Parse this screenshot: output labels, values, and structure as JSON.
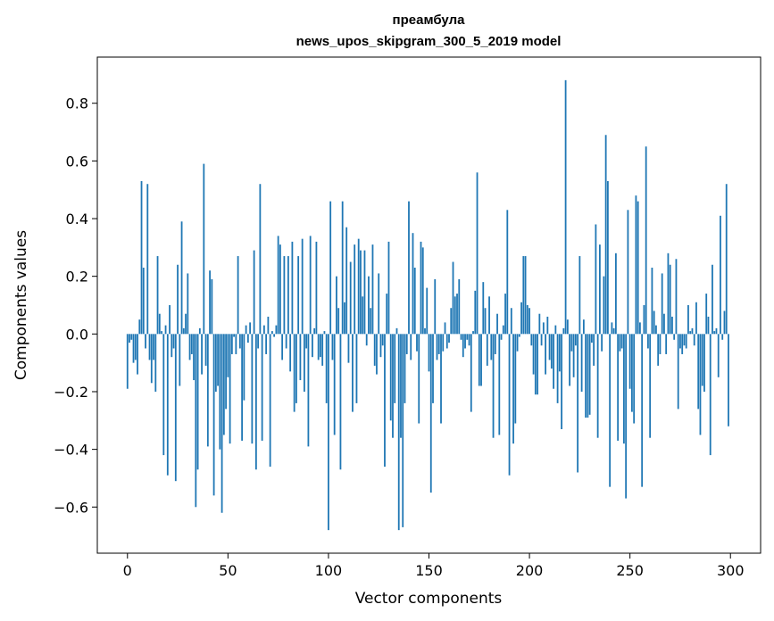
{
  "chart_data": {
    "type": "bar",
    "title": "преамбула",
    "subtitle": "news_upos_skipgram_300_5_2019 model",
    "xlabel": "Vector components",
    "ylabel": "Components values",
    "xlim": [
      -15,
      315
    ],
    "ylim": [
      -0.76,
      0.96
    ],
    "xticks": [
      0,
      50,
      100,
      150,
      200,
      250,
      300
    ],
    "xtick_labels": [
      "0",
      "50",
      "100",
      "150",
      "200",
      "250",
      "300"
    ],
    "yticks": [
      -0.6,
      -0.4,
      -0.2,
      0.0,
      0.2,
      0.4,
      0.6,
      0.8
    ],
    "ytick_labels": [
      "−0.6",
      "−0.4",
      "−0.2",
      "0.0",
      "0.2",
      "0.4",
      "0.6",
      "0.8"
    ],
    "grid": false,
    "bar_color": "#1f77b4",
    "values": [
      -0.19,
      -0.03,
      -0.02,
      -0.1,
      -0.09,
      -0.14,
      0.05,
      0.53,
      0.23,
      -0.05,
      0.52,
      -0.09,
      -0.17,
      -0.09,
      -0.2,
      0.27,
      0.07,
      0.01,
      -0.42,
      0.03,
      -0.49,
      0.1,
      -0.08,
      -0.05,
      -0.51,
      0.24,
      -0.18,
      0.39,
      0.02,
      0.07,
      0.21,
      -0.09,
      -0.07,
      -0.16,
      -0.6,
      -0.47,
      0.02,
      -0.14,
      0.59,
      -0.11,
      -0.39,
      0.22,
      0.19,
      -0.56,
      -0.2,
      -0.18,
      -0.4,
      -0.62,
      -0.35,
      -0.26,
      -0.15,
      -0.38,
      -0.07,
      -0.01,
      -0.07,
      0.27,
      -0.05,
      -0.37,
      -0.23,
      0.03,
      -0.03,
      0.04,
      -0.38,
      0.29,
      -0.47,
      -0.05,
      0.52,
      -0.37,
      0.03,
      -0.07,
      0.06,
      -0.46,
      0.01,
      -0.01,
      0.03,
      0.34,
      0.31,
      -0.09,
      0.27,
      -0.05,
      0.27,
      -0.13,
      0.32,
      -0.27,
      -0.24,
      0.27,
      -0.16,
      0.33,
      -0.2,
      -0.05,
      -0.39,
      0.34,
      -0.08,
      0.02,
      0.32,
      -0.09,
      -0.08,
      -0.11,
      0.01,
      -0.24,
      -0.68,
      0.46,
      -0.09,
      -0.35,
      0.2,
      0.09,
      -0.47,
      0.46,
      0.11,
      0.37,
      -0.1,
      0.25,
      -0.27,
      0.31,
      -0.24,
      0.33,
      0.29,
      0.13,
      0.29,
      -0.04,
      0.2,
      0.09,
      0.31,
      -0.11,
      -0.14,
      0.21,
      -0.08,
      -0.04,
      -0.46,
      0.14,
      0.32,
      -0.3,
      -0.36,
      -0.24,
      0.02,
      -0.68,
      -0.36,
      -0.67,
      -0.24,
      -0.07,
      0.46,
      -0.09,
      0.35,
      0.23,
      -0.06,
      -0.31,
      0.32,
      0.3,
      0.02,
      0.16,
      -0.13,
      -0.55,
      -0.24,
      0.19,
      -0.09,
      -0.07,
      -0.31,
      -0.06,
      0.04,
      -0.05,
      -0.03,
      0.09,
      0.25,
      0.13,
      0.14,
      0.19,
      -0.02,
      -0.08,
      -0.05,
      -0.02,
      -0.04,
      -0.27,
      0.01,
      0.15,
      0.56,
      -0.18,
      -0.18,
      0.18,
      0.09,
      -0.11,
      0.13,
      -0.09,
      -0.36,
      -0.07,
      0.07,
      -0.35,
      -0.02,
      0.03,
      0.14,
      0.43,
      -0.49,
      0.09,
      -0.38,
      -0.31,
      -0.06,
      -0.01,
      0.11,
      0.27,
      0.27,
      0.1,
      0.09,
      -0.04,
      -0.14,
      -0.21,
      -0.21,
      0.07,
      -0.04,
      0.04,
      -0.14,
      0.06,
      -0.09,
      -0.12,
      -0.19,
      0.03,
      -0.24,
      -0.13,
      -0.33,
      0.02,
      0.88,
      0.05,
      -0.18,
      -0.06,
      -0.15,
      -0.04,
      -0.48,
      0.27,
      -0.2,
      0.05,
      -0.29,
      -0.29,
      -0.28,
      -0.03,
      -0.11,
      0.38,
      -0.36,
      0.31,
      -0.06,
      0.2,
      0.69,
      0.53,
      -0.53,
      0.04,
      0.02,
      0.28,
      -0.37,
      -0.06,
      -0.05,
      -0.38,
      -0.57,
      0.43,
      -0.19,
      -0.27,
      -0.31,
      0.48,
      0.46,
      0.04,
      -0.53,
      0.1,
      0.65,
      -0.05,
      -0.36,
      0.23,
      0.08,
      0.03,
      -0.11,
      -0.07,
      0.21,
      0.07,
      -0.07,
      0.28,
      0.24,
      0.06,
      -0.02,
      0.26,
      -0.26,
      -0.05,
      -0.07,
      -0.04,
      -0.05,
      0.1,
      0.01,
      0.02,
      -0.04,
      0.11,
      -0.26,
      -0.35,
      -0.18,
      -0.2,
      0.14,
      0.06,
      -0.42,
      0.24,
      0.01,
      0.02,
      -0.15,
      0.41,
      -0.02,
      0.08,
      0.52,
      -0.32
    ]
  }
}
